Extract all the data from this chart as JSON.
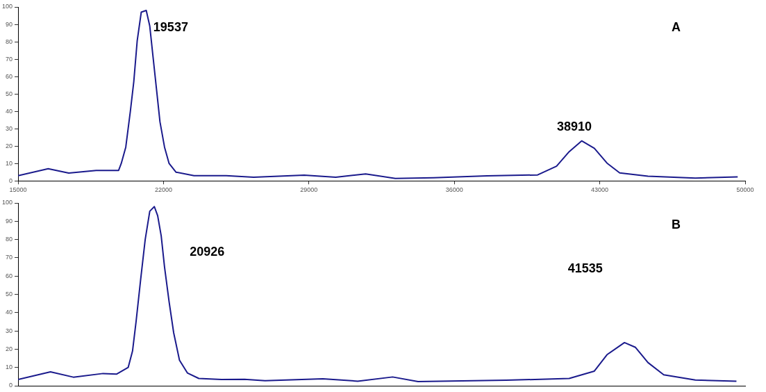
{
  "chart_data": [
    {
      "type": "line",
      "xlim": [
        15000,
        50000
      ],
      "xticks": [
        15000,
        22000,
        29000,
        36000,
        43000,
        50000
      ],
      "ylim": [
        0,
        100
      ],
      "yticks": [
        0,
        10,
        20,
        30,
        40,
        50,
        60,
        70,
        80,
        90,
        100
      ],
      "grid": false,
      "legend": false,
      "marker": "none",
      "series": [
        {
          "color": "#1a1a8c",
          "x": [
            15000,
            16450,
            17440,
            18760,
            19840,
            19967,
            20185,
            20405,
            20570,
            20735,
            20930,
            21170,
            21340,
            21500,
            21670,
            21830,
            22050,
            22270,
            22600,
            23470,
            25020,
            26340,
            28770,
            30290,
            31730,
            33160,
            35000,
            37580,
            40010,
            40920,
            41530,
            42130,
            42740,
            43350,
            43960,
            45320,
            47600,
            49640
          ],
          "values": [
            3,
            7,
            4.5,
            6,
            6,
            10,
            19.4,
            40,
            57,
            80.6,
            97,
            98,
            89,
            71,
            52,
            34,
            19.4,
            10,
            5,
            3,
            3,
            2.1,
            3.3,
            2.1,
            4,
            1.4,
            1.8,
            2.9,
            3.4,
            8.4,
            16.8,
            23,
            18.7,
            10.2,
            4.6,
            2.7,
            1.6,
            2.3
          ]
        }
      ],
      "annotations": [
        "19537",
        "38910",
        "A"
      ]
    },
    {
      "type": "line",
      "xlim": [
        15000,
        50000
      ],
      "ylim": [
        0,
        100
      ],
      "yticks": [
        0,
        10,
        20,
        30,
        40,
        50,
        60,
        70,
        80,
        90,
        100
      ],
      "tick_labels": "y",
      "grid": false,
      "legend": false,
      "marker": "none",
      "series": [
        {
          "color": "#1a1a8c",
          "x": [
            15000,
            16560,
            17660,
            19090,
            19750,
            20300,
            20510,
            20680,
            20900,
            21120,
            21340,
            21560,
            21720,
            21890,
            22050,
            22270,
            22490,
            22770,
            23150,
            23700,
            24790,
            25900,
            26890,
            29670,
            31350,
            33030,
            34250,
            38500,
            41530,
            42740,
            43350,
            44190,
            44720,
            45320,
            46080,
            47600,
            49580
          ],
          "values": [
            3.4,
            7.6,
            4.7,
            6.7,
            6.4,
            10,
            19,
            35,
            58,
            80,
            95.5,
            98,
            93,
            82,
            65,
            46,
            29,
            14,
            7,
            4,
            3.4,
            3.5,
            2.8,
            3.8,
            2.5,
            4.8,
            2.3,
            3,
            4,
            8,
            17,
            23.6,
            21,
            12.7,
            6,
            3.1,
            2.5
          ]
        }
      ],
      "annotations": [
        "20926",
        "41535",
        "B"
      ]
    }
  ]
}
